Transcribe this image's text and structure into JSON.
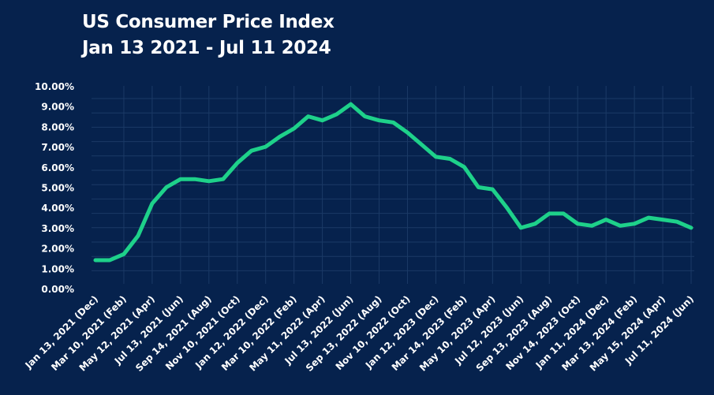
{
  "chart_data": {
    "type": "line",
    "title": "US Consumer Price Index",
    "subtitle": "Jan 13 2021 - Jul 11 2024",
    "xlabel": "",
    "ylabel": "",
    "ylim": [
      0,
      10
    ],
    "yticks": [
      "0.00%",
      "1.00%",
      "2.00%",
      "3.00%",
      "4.00%",
      "5.00%",
      "6.00%",
      "7.00%",
      "8.00%",
      "9.00%",
      "10.00%"
    ],
    "x_tick_labels": [
      "Jan 13, 2021 (Dec)",
      "Mar 10, 2021 (Feb)",
      "May 12, 2021 (Apr)",
      "Jul 13, 2021 (Jun)",
      "Sep 14, 2021 (Aug)",
      "Nov 10, 2021 (Oct)",
      "Jan 12, 2022 (Dec)",
      "Mar 10, 2022 (Feb)",
      "May 11, 2022 (Apr)",
      "Jul 13, 2022 (Jun)",
      "Sep 13, 2022 (Aug)",
      "Nov 10, 2022 (Oct)",
      "Jan 12, 2023 (Dec)",
      "Mar 14, 2023 (Feb)",
      "May 10, 2023 (Apr)",
      "Jul 12, 2023 (Jun)",
      "Sep 13, 2023 (Aug)",
      "Nov 14, 2023 (Oct)",
      "Jan 11, 2024 (Dec)",
      "Mar 13, 2024 (Feb)",
      "May 15, 2024 (Apr)",
      "Jul 11, 2024 (Jun)"
    ],
    "grid": true,
    "legend": "none",
    "series": [
      {
        "color": "#1ed18a",
        "values": [
          1.4,
          1.4,
          1.7,
          2.6,
          4.2,
          5.0,
          5.4,
          5.4,
          5.3,
          5.4,
          6.2,
          6.8,
          7.0,
          7.5,
          7.9,
          8.5,
          8.3,
          8.6,
          9.1,
          8.5,
          8.3,
          8.2,
          7.7,
          7.1,
          6.5,
          6.4,
          6.0,
          5.0,
          4.9,
          4.0,
          3.0,
          3.2,
          3.7,
          3.7,
          3.2,
          3.1,
          3.4,
          3.1,
          3.2,
          3.5,
          3.4,
          3.3,
          3.0
        ]
      }
    ],
    "colors": {
      "background": "#06224d",
      "grid": "#1b3a66",
      "text": "#ffffff"
    }
  }
}
